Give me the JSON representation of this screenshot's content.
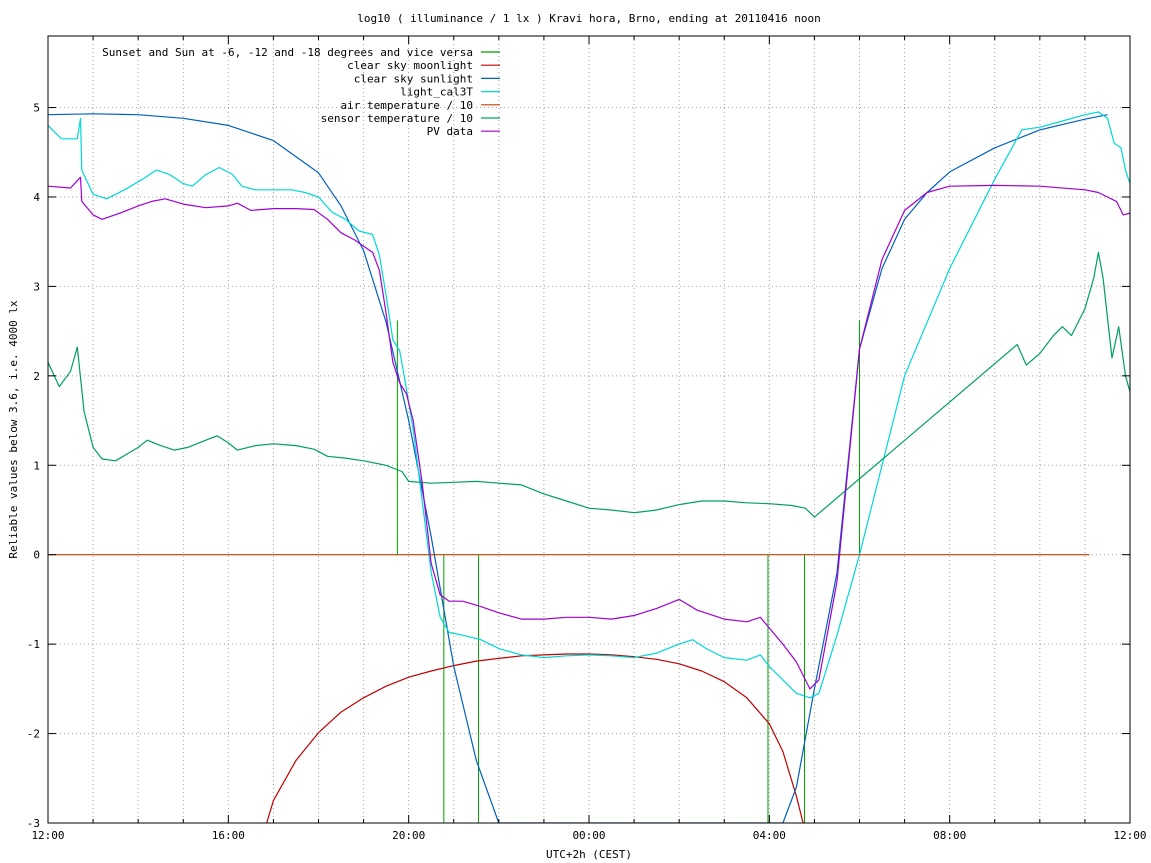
{
  "chart_data": {
    "type": "line",
    "title": "log10 ( illuminance / 1 lx ) Kravi hora, Brno, ending at 20110416 noon",
    "xlabel": "UTC+2h (CEST)",
    "ylabel": "Reliable values below 3.6, i.e. 4000 lx",
    "x_unit": "hours since 12:00",
    "xlim": [
      0,
      24
    ],
    "ylim": [
      -3,
      5.8
    ],
    "x_ticks": [
      {
        "x": 0,
        "label": "12:00"
      },
      {
        "x": 4,
        "label": "16:00"
      },
      {
        "x": 8,
        "label": "20:00"
      },
      {
        "x": 12,
        "label": "00:00"
      },
      {
        "x": 16,
        "label": "04:00"
      },
      {
        "x": 20,
        "label": "08:00"
      },
      {
        "x": 24,
        "label": "12:00"
      }
    ],
    "x_minor_step": 1,
    "y_ticks": [
      {
        "y": 5,
        "label": "5"
      },
      {
        "y": 4,
        "label": "4"
      },
      {
        "y": 3,
        "label": "3"
      },
      {
        "y": 2,
        "label": "2"
      },
      {
        "y": 1,
        "label": "1"
      },
      {
        "y": 0,
        "label": "0"
      },
      {
        "y": -1,
        "label": "-1"
      },
      {
        "y": -2,
        "label": "-2"
      },
      {
        "y": -3,
        "label": "-3"
      }
    ],
    "grid": true,
    "legend_position": "top-left",
    "series": [
      {
        "name": "Sunset and Sun at -6, -12 and -18 degrees and vice versa",
        "color": "#00a000",
        "type": "impulse",
        "points": [
          [
            7.75,
            2.62
          ],
          [
            8.78,
            -3.0
          ],
          [
            9.55,
            -3.0
          ],
          [
            15.97,
            -3.0
          ],
          [
            16.78,
            -3.0
          ],
          [
            18.0,
            2.62
          ]
        ]
      },
      {
        "name": "clear sky moonlight",
        "color": "#c00000",
        "points": [
          [
            4.85,
            -3.0
          ],
          [
            5.0,
            -2.75
          ],
          [
            5.5,
            -2.3
          ],
          [
            6.0,
            -1.99
          ],
          [
            6.5,
            -1.76
          ],
          [
            7.0,
            -1.6
          ],
          [
            7.5,
            -1.47
          ],
          [
            8.0,
            -1.37
          ],
          [
            8.5,
            -1.3
          ],
          [
            9.0,
            -1.24
          ],
          [
            9.5,
            -1.19
          ],
          [
            10.0,
            -1.16
          ],
          [
            10.5,
            -1.13
          ],
          [
            11.0,
            -1.12
          ],
          [
            11.5,
            -1.11
          ],
          [
            12.0,
            -1.11
          ],
          [
            12.5,
            -1.12
          ],
          [
            13.0,
            -1.14
          ],
          [
            13.5,
            -1.17
          ],
          [
            14.0,
            -1.22
          ],
          [
            14.5,
            -1.3
          ],
          [
            15.0,
            -1.42
          ],
          [
            15.5,
            -1.6
          ],
          [
            16.0,
            -1.89
          ],
          [
            16.3,
            -2.2
          ],
          [
            16.6,
            -2.7
          ],
          [
            16.75,
            -3.0
          ]
        ]
      },
      {
        "name": "clear sky sunlight",
        "color": "#0060c0",
        "points": [
          [
            0.0,
            4.92
          ],
          [
            1.0,
            4.93
          ],
          [
            2.0,
            4.92
          ],
          [
            3.0,
            4.88
          ],
          [
            4.0,
            4.8
          ],
          [
            5.0,
            4.63
          ],
          [
            6.0,
            4.27
          ],
          [
            6.5,
            3.9
          ],
          [
            7.0,
            3.4
          ],
          [
            7.5,
            2.6
          ],
          [
            8.0,
            1.5
          ],
          [
            8.5,
            0.2
          ],
          [
            9.0,
            -1.25
          ],
          [
            9.5,
            -2.3
          ],
          [
            10.0,
            -3.0
          ],
          [
            16.3,
            -3.0
          ],
          [
            16.6,
            -2.6
          ],
          [
            17.0,
            -1.5
          ],
          [
            17.5,
            -0.2
          ],
          [
            18.0,
            2.3
          ],
          [
            18.5,
            3.2
          ],
          [
            19.0,
            3.75
          ],
          [
            19.5,
            4.05
          ],
          [
            20.0,
            4.28
          ],
          [
            21.0,
            4.55
          ],
          [
            22.0,
            4.75
          ],
          [
            23.0,
            4.87
          ],
          [
            23.5,
            4.92
          ]
        ]
      },
      {
        "name": "light_cal3T",
        "color": "#00d8d8",
        "points": [
          [
            0.0,
            4.8
          ],
          [
            0.3,
            4.65
          ],
          [
            0.65,
            4.65
          ],
          [
            0.72,
            4.88
          ],
          [
            0.75,
            4.3
          ],
          [
            1.0,
            4.03
          ],
          [
            1.3,
            3.98
          ],
          [
            1.7,
            4.08
          ],
          [
            2.1,
            4.2
          ],
          [
            2.4,
            4.3
          ],
          [
            2.7,
            4.25
          ],
          [
            3.0,
            4.15
          ],
          [
            3.2,
            4.12
          ],
          [
            3.5,
            4.25
          ],
          [
            3.8,
            4.33
          ],
          [
            4.1,
            4.25
          ],
          [
            4.3,
            4.12
          ],
          [
            4.6,
            4.08
          ],
          [
            5.0,
            4.08
          ],
          [
            5.4,
            4.08
          ],
          [
            5.7,
            4.05
          ],
          [
            6.0,
            4.0
          ],
          [
            6.3,
            3.83
          ],
          [
            6.6,
            3.75
          ],
          [
            6.9,
            3.62
          ],
          [
            7.2,
            3.58
          ],
          [
            7.35,
            3.35
          ],
          [
            7.5,
            2.9
          ],
          [
            7.65,
            2.4
          ],
          [
            7.8,
            2.28
          ],
          [
            7.9,
            2.0
          ],
          [
            8.1,
            1.4
          ],
          [
            8.3,
            0.6
          ],
          [
            8.5,
            -0.2
          ],
          [
            8.7,
            -0.7
          ],
          [
            8.9,
            -0.87
          ],
          [
            9.2,
            -0.9
          ],
          [
            9.6,
            -0.95
          ],
          [
            10.0,
            -1.05
          ],
          [
            10.5,
            -1.12
          ],
          [
            11.0,
            -1.15
          ],
          [
            11.5,
            -1.13
          ],
          [
            12.0,
            -1.12
          ],
          [
            12.5,
            -1.13
          ],
          [
            13.0,
            -1.15
          ],
          [
            13.5,
            -1.1
          ],
          [
            14.0,
            -1.0
          ],
          [
            14.3,
            -0.95
          ],
          [
            14.6,
            -1.05
          ],
          [
            15.0,
            -1.15
          ],
          [
            15.5,
            -1.18
          ],
          [
            15.8,
            -1.12
          ],
          [
            16.0,
            -1.25
          ],
          [
            16.3,
            -1.4
          ],
          [
            16.6,
            -1.55
          ],
          [
            16.9,
            -1.6
          ],
          [
            17.1,
            -1.55
          ],
          [
            17.5,
            -0.9
          ],
          [
            18.0,
            0.0
          ],
          [
            19.0,
            2.0
          ],
          [
            20.0,
            3.2
          ],
          [
            21.0,
            4.2
          ],
          [
            21.6,
            4.75
          ],
          [
            22.0,
            4.78
          ],
          [
            22.5,
            4.85
          ],
          [
            23.0,
            4.92
          ],
          [
            23.3,
            4.95
          ],
          [
            23.5,
            4.88
          ],
          [
            23.65,
            4.6
          ],
          [
            23.8,
            4.55
          ],
          [
            23.9,
            4.3
          ],
          [
            24.0,
            4.15
          ]
        ]
      },
      {
        "name": "air temperature / 10",
        "color": "#c04000",
        "points": [
          [
            0.0,
            0.0
          ],
          [
            23.1,
            0.0
          ]
        ]
      },
      {
        "name": "sensor temperature / 10",
        "color": "#00a060",
        "points": [
          [
            0.0,
            2.15
          ],
          [
            0.25,
            1.88
          ],
          [
            0.5,
            2.05
          ],
          [
            0.65,
            2.32
          ],
          [
            0.8,
            1.6
          ],
          [
            1.0,
            1.2
          ],
          [
            1.2,
            1.07
          ],
          [
            1.5,
            1.05
          ],
          [
            2.0,
            1.2
          ],
          [
            2.2,
            1.28
          ],
          [
            2.5,
            1.22
          ],
          [
            2.8,
            1.17
          ],
          [
            3.1,
            1.2
          ],
          [
            3.5,
            1.28
          ],
          [
            3.75,
            1.33
          ],
          [
            4.0,
            1.25
          ],
          [
            4.2,
            1.17
          ],
          [
            4.6,
            1.22
          ],
          [
            5.0,
            1.24
          ],
          [
            5.5,
            1.22
          ],
          [
            5.9,
            1.18
          ],
          [
            6.2,
            1.1
          ],
          [
            6.6,
            1.08
          ],
          [
            7.0,
            1.05
          ],
          [
            7.5,
            1.0
          ],
          [
            7.85,
            0.93
          ],
          [
            8.0,
            0.82
          ],
          [
            8.5,
            0.8
          ],
          [
            9.0,
            0.81
          ],
          [
            9.5,
            0.82
          ],
          [
            10.0,
            0.8
          ],
          [
            10.5,
            0.78
          ],
          [
            11.0,
            0.68
          ],
          [
            11.5,
            0.6
          ],
          [
            12.0,
            0.52
          ],
          [
            12.5,
            0.5
          ],
          [
            13.0,
            0.47
          ],
          [
            13.5,
            0.5
          ],
          [
            14.0,
            0.56
          ],
          [
            14.5,
            0.6
          ],
          [
            15.0,
            0.6
          ],
          [
            15.5,
            0.58
          ],
          [
            16.0,
            0.57
          ],
          [
            16.5,
            0.55
          ],
          [
            16.8,
            0.52
          ],
          [
            17.0,
            0.42
          ],
          [
            21.5,
            2.35
          ],
          [
            21.7,
            2.12
          ],
          [
            22.0,
            2.25
          ],
          [
            22.3,
            2.45
          ],
          [
            22.5,
            2.55
          ],
          [
            22.7,
            2.45
          ],
          [
            23.0,
            2.75
          ],
          [
            23.2,
            3.1
          ],
          [
            23.3,
            3.38
          ],
          [
            23.4,
            3.1
          ],
          [
            23.6,
            2.2
          ],
          [
            23.75,
            2.55
          ],
          [
            23.9,
            2.0
          ],
          [
            24.0,
            1.82
          ]
        ]
      },
      {
        "name": "PV data",
        "color": "#a000d0",
        "points": [
          [
            0.0,
            4.12
          ],
          [
            0.5,
            4.1
          ],
          [
            0.72,
            4.22
          ],
          [
            0.75,
            3.95
          ],
          [
            1.0,
            3.8
          ],
          [
            1.2,
            3.75
          ],
          [
            1.6,
            3.82
          ],
          [
            2.0,
            3.9
          ],
          [
            2.3,
            3.95
          ],
          [
            2.6,
            3.98
          ],
          [
            3.0,
            3.92
          ],
          [
            3.5,
            3.88
          ],
          [
            4.0,
            3.9
          ],
          [
            4.2,
            3.93
          ],
          [
            4.5,
            3.85
          ],
          [
            5.0,
            3.87
          ],
          [
            5.5,
            3.87
          ],
          [
            5.9,
            3.86
          ],
          [
            6.2,
            3.75
          ],
          [
            6.5,
            3.6
          ],
          [
            6.8,
            3.52
          ],
          [
            7.0,
            3.45
          ],
          [
            7.2,
            3.38
          ],
          [
            7.35,
            3.18
          ],
          [
            7.5,
            2.7
          ],
          [
            7.65,
            2.15
          ],
          [
            7.8,
            1.92
          ],
          [
            7.95,
            1.8
          ],
          [
            8.1,
            1.5
          ],
          [
            8.3,
            0.8
          ],
          [
            8.5,
            -0.1
          ],
          [
            8.7,
            -0.45
          ],
          [
            8.9,
            -0.52
          ],
          [
            9.2,
            -0.52
          ],
          [
            9.6,
            -0.58
          ],
          [
            10.0,
            -0.65
          ],
          [
            10.5,
            -0.72
          ],
          [
            11.0,
            -0.72
          ],
          [
            11.5,
            -0.7
          ],
          [
            12.0,
            -0.7
          ],
          [
            12.5,
            -0.72
          ],
          [
            13.0,
            -0.68
          ],
          [
            13.5,
            -0.6
          ],
          [
            14.0,
            -0.5
          ],
          [
            14.4,
            -0.62
          ],
          [
            15.0,
            -0.72
          ],
          [
            15.5,
            -0.75
          ],
          [
            15.8,
            -0.7
          ],
          [
            16.0,
            -0.82
          ],
          [
            16.3,
            -1.0
          ],
          [
            16.6,
            -1.2
          ],
          [
            16.9,
            -1.5
          ],
          [
            17.1,
            -1.4
          ],
          [
            17.5,
            -0.3
          ],
          [
            18.0,
            2.3
          ],
          [
            18.5,
            3.3
          ],
          [
            19.0,
            3.85
          ],
          [
            19.5,
            4.05
          ],
          [
            20.0,
            4.12
          ],
          [
            21.0,
            4.13
          ],
          [
            22.0,
            4.12
          ],
          [
            23.0,
            4.08
          ],
          [
            23.3,
            4.05
          ],
          [
            23.5,
            4.0
          ],
          [
            23.7,
            3.95
          ],
          [
            23.85,
            3.8
          ],
          [
            24.0,
            3.82
          ]
        ]
      }
    ]
  }
}
